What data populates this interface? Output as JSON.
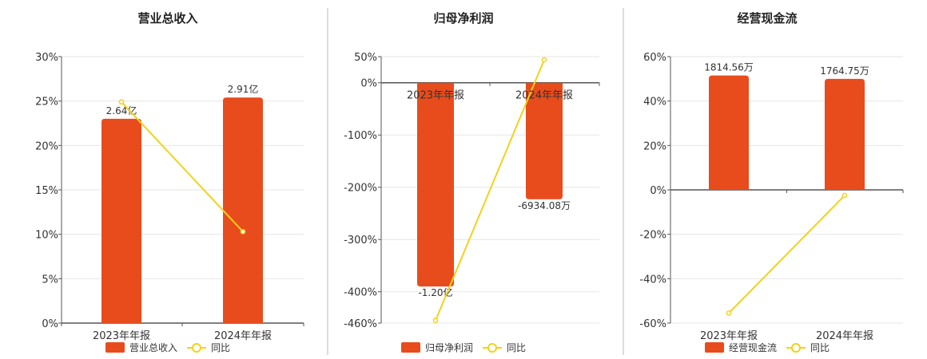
{
  "colors": {
    "bar": "#E84C1C",
    "line": "#F2D21B",
    "grid": "#e6e6e6",
    "axis": "#555555",
    "divider": "#bbbbbb"
  },
  "chart_data": [
    {
      "type": "bar",
      "title": "营业总收入",
      "categories": [
        "2023年年报",
        "2024年年报"
      ],
      "ylim": [
        0,
        30
      ],
      "yticks": [
        0,
        5,
        10,
        15,
        20,
        25,
        30
      ],
      "ytick_labels": [
        "0%",
        "5%",
        "10%",
        "15%",
        "20%",
        "25%",
        "30%"
      ],
      "grid": true,
      "legend_position": "bottom",
      "series": [
        {
          "name": "营业总收入",
          "kind": "bar",
          "values": [
            23.0,
            25.4
          ],
          "data_labels": [
            "2.64亿",
            "2.91亿"
          ]
        },
        {
          "name": "同比",
          "kind": "line",
          "values": [
            24.9,
            10.3
          ]
        }
      ]
    },
    {
      "type": "bar",
      "title": "归母净利润",
      "categories": [
        "2023年年报",
        "2024年年报"
      ],
      "ylim": [
        -460,
        50
      ],
      "yticks": [
        50,
        0,
        -100,
        -200,
        -300,
        -400,
        -460
      ],
      "ytick_labels": [
        "50%",
        "0%",
        "-100%",
        "-200%",
        "-300%",
        "-400%",
        "-460%"
      ],
      "grid": true,
      "legend_position": "bottom",
      "series": [
        {
          "name": "归母净利润",
          "kind": "bar",
          "values": [
            -390,
            -223
          ],
          "data_labels": [
            "-1.20亿",
            "-6934.08万"
          ]
        },
        {
          "name": "同比",
          "kind": "line",
          "values": [
            -455,
            44
          ]
        }
      ]
    },
    {
      "type": "bar",
      "title": "经营现金流",
      "categories": [
        "2023年年报",
        "2024年年报"
      ],
      "ylim": [
        -60,
        60
      ],
      "yticks": [
        60,
        40,
        20,
        0,
        -20,
        -40,
        -60
      ],
      "ytick_labels": [
        "60%",
        "40%",
        "20%",
        "0%",
        "-20%",
        "-40%",
        "-60%"
      ],
      "grid": true,
      "legend_position": "bottom",
      "series": [
        {
          "name": "经营现金流",
          "kind": "bar",
          "values": [
            51.5,
            50.0
          ],
          "data_labels": [
            "1814.56万",
            "1764.75万"
          ]
        },
        {
          "name": "同比",
          "kind": "line",
          "values": [
            -55.5,
            -2.5
          ]
        }
      ]
    }
  ]
}
